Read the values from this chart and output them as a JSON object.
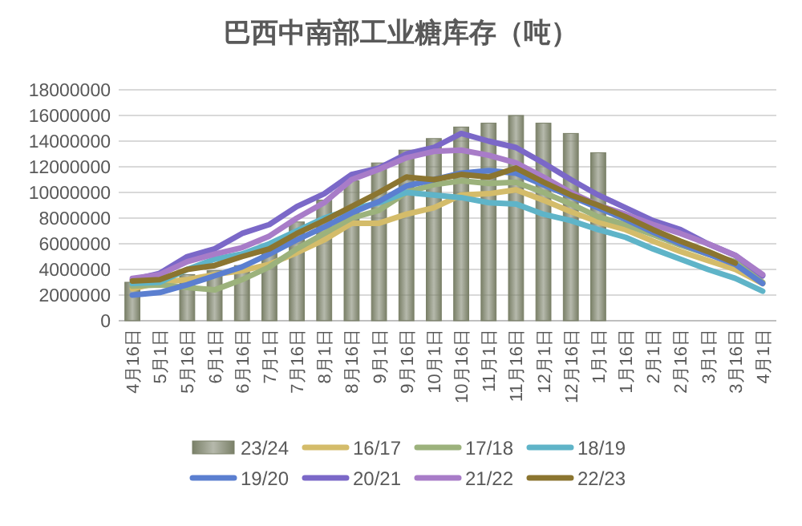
{
  "chart_data": {
    "type": "bar",
    "title": "巴西中南部工业糖库存（吨）",
    "categories": [
      "4月16日",
      "5月1日",
      "5月16日",
      "6月1日",
      "6月16日",
      "7月1日",
      "7月16日",
      "8月1日",
      "8月16日",
      "9月1日",
      "9月16日",
      "10月1日",
      "10月16日",
      "11月1日",
      "11月16日",
      "12月1日",
      "12月16日",
      "1月1日",
      "1月16日",
      "2月1日",
      "2月16日",
      "3月1日",
      "3月16日",
      "4月1日"
    ],
    "series": [
      {
        "name": "23/24",
        "color": "#7a8068",
        "values": [
          3000000,
          null,
          3600000,
          3900000,
          4300000,
          5600000,
          7700000,
          9400000,
          10900000,
          12300000,
          13300000,
          14200000,
          15100000,
          15400000,
          16000000,
          15400000,
          14600000,
          13100000,
          null,
          null,
          null,
          null,
          null,
          null
        ]
      },
      {
        "name": "16/17",
        "type": "line",
        "color": "#d4bc6a",
        "values": [
          2500000,
          3000000,
          3200000,
          3600000,
          3900000,
          4400000,
          5300000,
          6300000,
          7600000,
          7600000,
          8300000,
          8800000,
          9800000,
          9900000,
          10200000,
          9400000,
          8500000,
          7700000,
          7100000,
          6200000,
          5400000,
          4700000,
          4000000,
          2900000
        ]
      },
      {
        "name": "17/18",
        "type": "line",
        "color": "#9cb27c",
        "values": [
          2700000,
          2800000,
          2600000,
          2400000,
          3200000,
          4200000,
          5600000,
          6800000,
          8000000,
          8600000,
          10000000,
          10600000,
          10900000,
          10700000,
          10800000,
          10000000,
          9100000,
          8100000,
          7500000,
          6700000,
          5900000,
          5200000,
          4600000,
          3000000
        ]
      },
      {
        "name": "18/19",
        "type": "line",
        "color": "#5fb4c8",
        "values": [
          2900000,
          3000000,
          4000000,
          4800000,
          5200000,
          6000000,
          7000000,
          8000000,
          8700000,
          9200000,
          10000000,
          9800000,
          9600000,
          9200000,
          9100000,
          8300000,
          7800000,
          7100000,
          6500000,
          5600000,
          4800000,
          4000000,
          3300000,
          2300000
        ]
      },
      {
        "name": "19/20",
        "type": "line",
        "color": "#5b7fd0",
        "values": [
          2000000,
          2200000,
          2800000,
          3500000,
          4200000,
          5200000,
          6300000,
          7300000,
          8400000,
          9300000,
          10500000,
          11000000,
          11500000,
          11700000,
          11500000,
          10600000,
          9700000,
          8800000,
          7900000,
          6900000,
          6000000,
          5200000,
          4400000,
          2900000
        ]
      },
      {
        "name": "20/21",
        "type": "line",
        "color": "#7b68c8",
        "values": [
          3200000,
          3700000,
          5000000,
          5600000,
          6800000,
          7500000,
          8900000,
          9900000,
          11400000,
          11900000,
          13000000,
          13500000,
          14600000,
          14000000,
          13500000,
          12300000,
          11000000,
          9800000,
          8800000,
          7800000,
          7100000,
          6000000,
          5100000,
          3500000
        ]
      },
      {
        "name": "21/22",
        "type": "line",
        "color": "#a87cc8",
        "values": [
          3300000,
          3600000,
          4600000,
          5200000,
          5700000,
          6600000,
          8000000,
          9200000,
          11000000,
          11800000,
          12700000,
          13200000,
          13300000,
          12900000,
          12300000,
          11200000,
          10000000,
          9000000,
          8300000,
          7500000,
          6800000,
          6000000,
          5100000,
          3600000
        ]
      },
      {
        "name": "22/23",
        "type": "line",
        "color": "#8b7530",
        "values": [
          3100000,
          3200000,
          4000000,
          4300000,
          5000000,
          5600000,
          6800000,
          7800000,
          8900000,
          10000000,
          11200000,
          11000000,
          11400000,
          11200000,
          11900000,
          10800000,
          9800000,
          9000000,
          8100000,
          7100000,
          6200000,
          5400000,
          4500000,
          null
        ]
      }
    ],
    "ylim": [
      0,
      18000000
    ],
    "yticks": [
      0,
      2000000,
      4000000,
      6000000,
      8000000,
      10000000,
      12000000,
      14000000,
      16000000,
      18000000
    ],
    "grid": "y",
    "legend": "bottom"
  }
}
